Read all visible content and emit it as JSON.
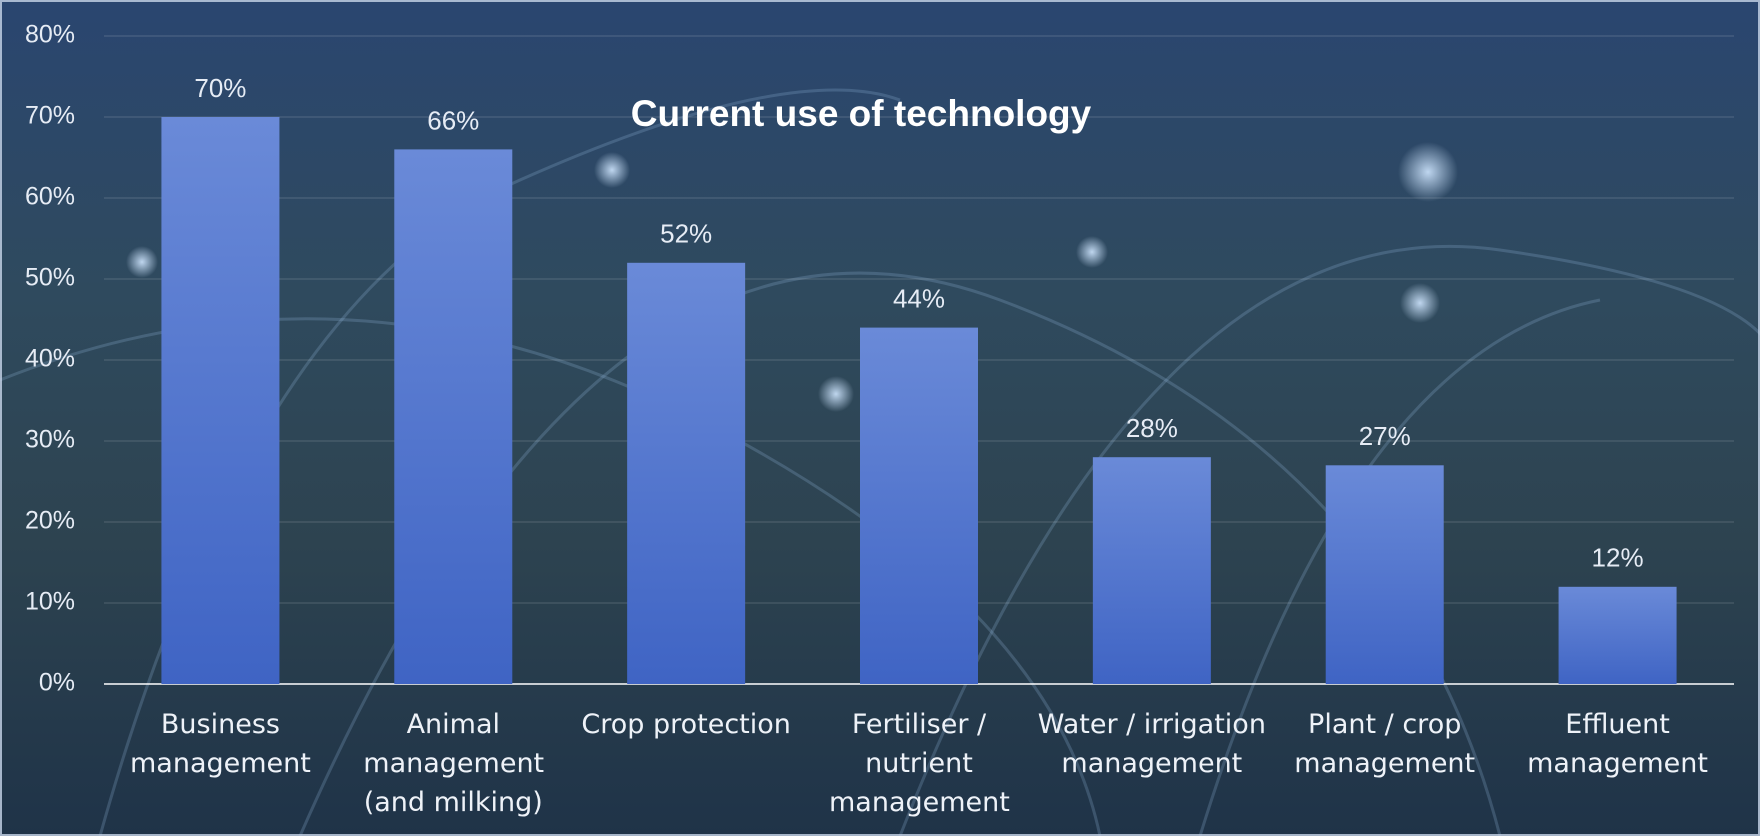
{
  "chart_data": {
    "type": "bar",
    "title": "Current use of technology",
    "categories": [
      "Business management",
      "Animal management (and milking)",
      "Crop protection",
      "Fertiliser / nutrient management",
      "Water / irrigation management",
      "Plant / crop management",
      "Effluent management"
    ],
    "values": [
      70,
      66,
      52,
      44,
      28,
      27,
      12
    ],
    "value_labels": [
      "70%",
      "66%",
      "52%",
      "44%",
      "28%",
      "27%",
      "12%"
    ],
    "color": "#4a72cf",
    "ylim": [
      0,
      80
    ],
    "yticks": [
      {
        "value": 0,
        "label": "0%"
      },
      {
        "value": 10,
        "label": "10%"
      },
      {
        "value": 20,
        "label": "20%"
      },
      {
        "value": 30,
        "label": "30%"
      },
      {
        "value": 40,
        "label": "40%"
      },
      {
        "value": 50,
        "label": "50%"
      },
      {
        "value": 60,
        "label": "60%"
      },
      {
        "value": 70,
        "label": "70%"
      },
      {
        "value": 80,
        "label": "80%"
      }
    ],
    "grid": true
  }
}
